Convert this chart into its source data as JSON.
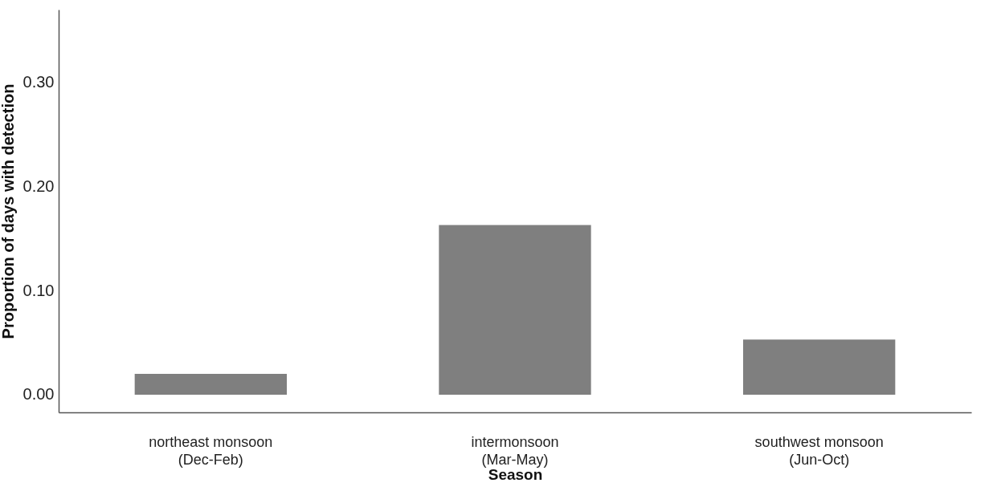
{
  "chart_data": {
    "type": "bar",
    "xlabel": "Season",
    "ylabel": "Proportion of days with detection",
    "categories": [
      "northeast monsoon\n(Dec-Feb)",
      "intermonsoon\n(Mar-May)",
      "southwest monsoon\n(Jun-Oct)"
    ],
    "values": [
      0.02,
      0.163,
      0.053
    ],
    "color": "#7f7f7f",
    "ylim": [
      -0.017,
      0.37
    ],
    "yticks": [
      {
        "value": 0,
        "label": "0.00"
      },
      {
        "value": 0.1,
        "label": "0.10"
      },
      {
        "value": 0.2,
        "label": "0.20"
      },
      {
        "value": 0.3,
        "label": "0.30"
      }
    ],
    "grid": false
  }
}
